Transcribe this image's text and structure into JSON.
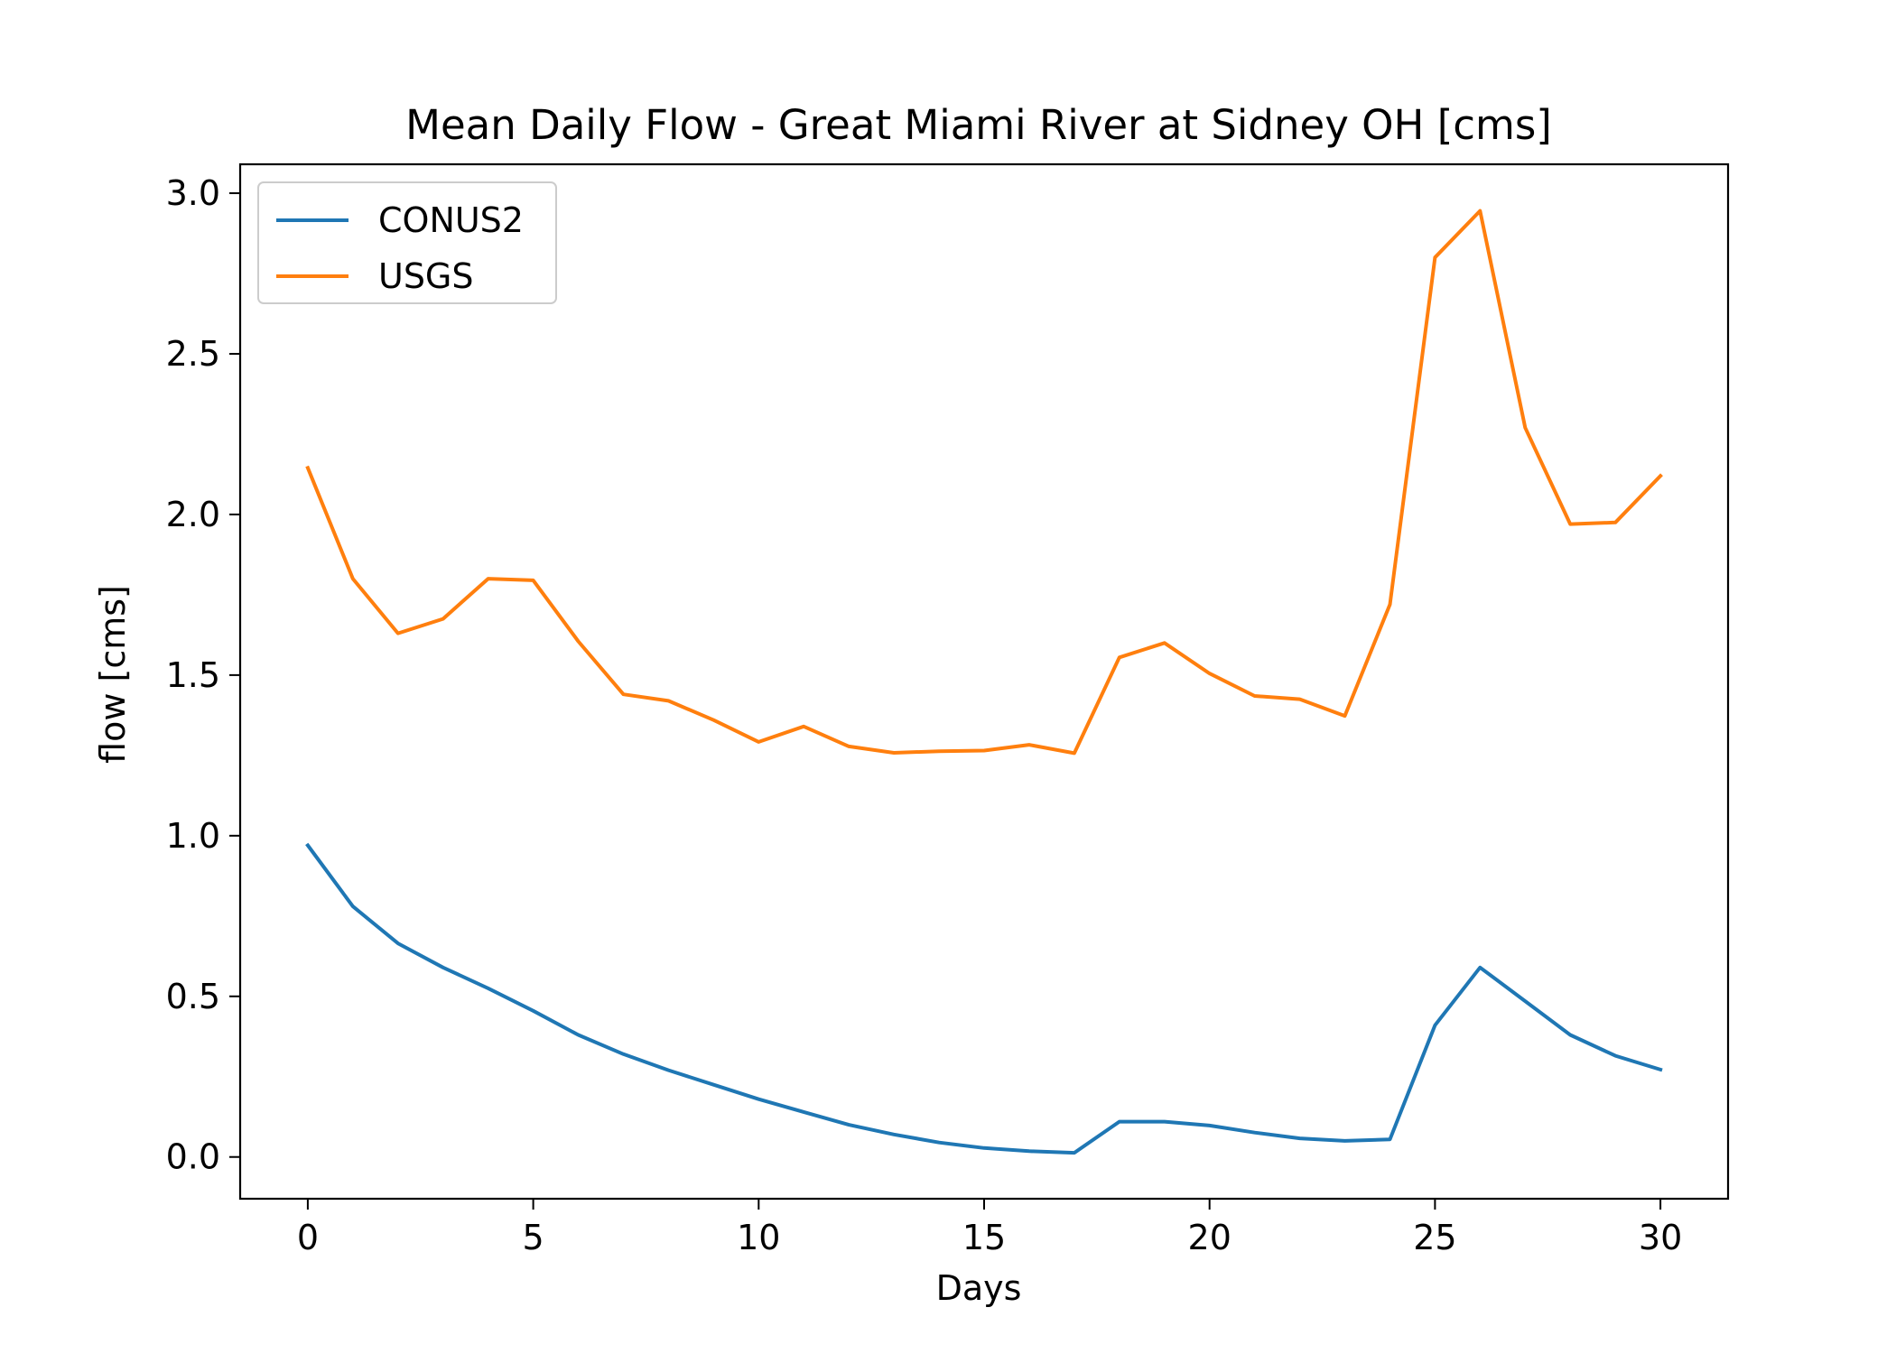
{
  "chart_data": {
    "type": "line",
    "title": "Mean Daily Flow - Great Miami River at Sidney OH [cms]",
    "xlabel": "Days",
    "ylabel": "flow [cms]",
    "xlim": [
      -1.5,
      31.5
    ],
    "ylim": [
      -0.13,
      3.09
    ],
    "xticks": [
      0,
      5,
      10,
      15,
      20,
      25,
      30
    ],
    "xtick_labels": [
      "0",
      "5",
      "10",
      "15",
      "20",
      "25",
      "30"
    ],
    "yticks": [
      0.0,
      0.5,
      1.0,
      1.5,
      2.0,
      2.5,
      3.0
    ],
    "ytick_labels": [
      "0.0",
      "0.5",
      "1.0",
      "1.5",
      "2.0",
      "2.5",
      "3.0"
    ],
    "grid": false,
    "legend_position": "top-left",
    "x": [
      0,
      1,
      2,
      3,
      4,
      5,
      6,
      7,
      8,
      9,
      10,
      11,
      12,
      13,
      14,
      15,
      16,
      17,
      18,
      19,
      20,
      21,
      22,
      23,
      24,
      25,
      26,
      27,
      28,
      29,
      30
    ],
    "series": [
      {
        "name": "CONUS2",
        "color": "#1f77b4",
        "values": [
          0.97,
          0.78,
          0.665,
          0.59,
          0.525,
          0.455,
          0.38,
          0.32,
          0.27,
          0.225,
          0.18,
          0.14,
          0.1,
          0.07,
          0.045,
          0.028,
          0.018,
          0.013,
          0.11,
          0.11,
          0.098,
          0.076,
          0.058,
          0.05,
          0.055,
          0.41,
          0.59,
          0.485,
          0.38,
          0.315,
          0.272
        ]
      },
      {
        "name": "USGS",
        "color": "#ff7f0e",
        "values": [
          2.145,
          1.8,
          1.63,
          1.675,
          1.8,
          1.795,
          1.605,
          1.44,
          1.42,
          1.36,
          1.292,
          1.34,
          1.278,
          1.258,
          1.263,
          1.265,
          1.283,
          1.257,
          1.555,
          1.6,
          1.505,
          1.435,
          1.425,
          1.373,
          1.72,
          2.8,
          2.945,
          2.27,
          1.97,
          1.975,
          2.12
        ]
      }
    ]
  }
}
